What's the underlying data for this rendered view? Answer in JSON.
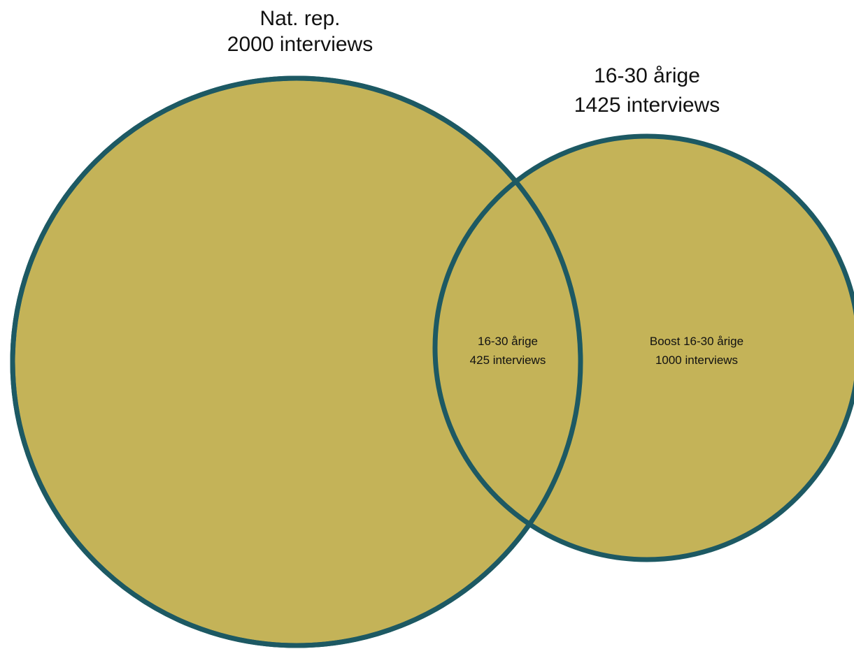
{
  "diagram": {
    "type": "venn",
    "fill_color": "#c4b358",
    "stroke_color": "#1d5963",
    "sets": [
      {
        "id": "nat_rep",
        "label_line1": "Nat. rep.",
        "label_line2": "2000 interviews"
      },
      {
        "id": "age_16_30",
        "label_line1": "16-30 årige",
        "label_line2": "1425 interviews"
      }
    ],
    "regions": {
      "overlap": {
        "line1": "16-30 årige",
        "line2": "425 interviews"
      },
      "boost": {
        "line1": "Boost 16-30 årige",
        "line2": "1000 interviews"
      }
    }
  }
}
